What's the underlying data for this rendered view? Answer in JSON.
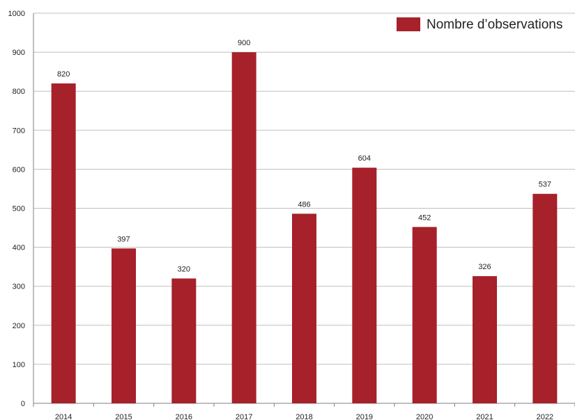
{
  "colors": {
    "bar": "#a6212a",
    "grid": "#bfbfbf",
    "axis": "#7f7f7f",
    "text": "#222222"
  },
  "chart_data": {
    "type": "bar",
    "categories": [
      "2014",
      "2015",
      "2016",
      "2017",
      "2018",
      "2019",
      "2020",
      "2021",
      "2022"
    ],
    "series": [
      {
        "name": "Nombre d’observations",
        "values": [
          820,
          397,
          320,
          900,
          486,
          604,
          452,
          326,
          537
        ]
      }
    ],
    "ylim": [
      0,
      1000
    ],
    "yticks": [
      0,
      100,
      200,
      300,
      400,
      500,
      600,
      700,
      800,
      900,
      1000
    ],
    "data_labels": true,
    "grid": true,
    "legend_position": "top-right",
    "title": "",
    "xlabel": "",
    "ylabel": ""
  }
}
